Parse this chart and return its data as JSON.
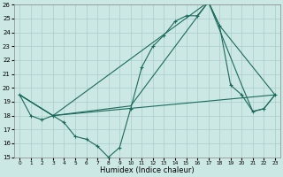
{
  "xlabel": "Humidex (Indice chaleur)",
  "xlim": [
    -0.5,
    23.5
  ],
  "ylim": [
    15,
    26
  ],
  "xticks": [
    0,
    1,
    2,
    3,
    4,
    5,
    6,
    7,
    8,
    9,
    10,
    11,
    12,
    13,
    14,
    15,
    16,
    17,
    18,
    19,
    20,
    21,
    22,
    23
  ],
  "yticks": [
    15,
    16,
    17,
    18,
    19,
    20,
    21,
    22,
    23,
    24,
    25,
    26
  ],
  "bg_color": "#cce8e4",
  "grid_color": "#aacccc",
  "line_color": "#1a6b5c",
  "line1_x": [
    0,
    1,
    2,
    3,
    4,
    5,
    6,
    7,
    8,
    9,
    10,
    11,
    12,
    13,
    14,
    15,
    16,
    17,
    18,
    19,
    20,
    21,
    22,
    23
  ],
  "line1_y": [
    19.5,
    18.0,
    17.7,
    18.0,
    17.5,
    16.5,
    16.3,
    15.8,
    15.0,
    15.7,
    18.5,
    21.5,
    23.0,
    23.8,
    24.8,
    25.2,
    25.2,
    26.2,
    24.5,
    20.2,
    19.5,
    18.3,
    18.5,
    19.5
  ],
  "line2_x": [
    0,
    3,
    10,
    17,
    18,
    23
  ],
  "line2_y": [
    19.5,
    18.0,
    18.7,
    26.2,
    24.5,
    19.5
  ],
  "line3_x": [
    0,
    3,
    23
  ],
  "line3_y": [
    19.5,
    18.0,
    19.5
  ],
  "line4_x": [
    0,
    3,
    17,
    20,
    21,
    22,
    23
  ],
  "line4_y": [
    19.5,
    18.0,
    26.2,
    20.2,
    18.3,
    18.5,
    19.5
  ]
}
